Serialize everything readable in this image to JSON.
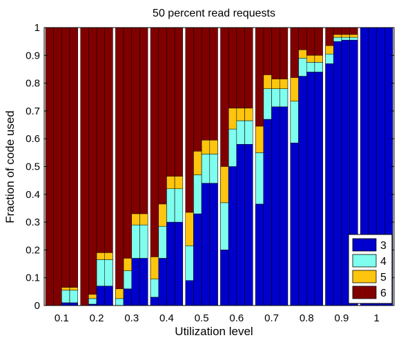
{
  "chart_data": {
    "type": "bar",
    "stacked": true,
    "title": "50 percent read requests",
    "xlabel": "Utilization level",
    "ylabel": "Fraction of code used",
    "ylim": [
      0,
      1
    ],
    "yticks": [
      "0",
      "0.1",
      "0.2",
      "0.3",
      "0.4",
      "0.5",
      "0.6",
      "0.7",
      "0.8",
      "0.9",
      "1"
    ],
    "categories": [
      "0.1",
      "0.2",
      "0.3",
      "0.4",
      "0.5",
      "0.6",
      "0.7",
      "0.8",
      "0.9",
      "1"
    ],
    "bars_per_group": 4,
    "legend": {
      "position": "bottom-right",
      "entries": [
        "3",
        "4",
        "5",
        "6"
      ]
    },
    "colors": {
      "3": "#0000cc",
      "4": "#7ffdee",
      "5": "#fdc50e",
      "6": "#800000"
    },
    "groups": [
      {
        "category": "0.1",
        "bars": [
          {
            "s3": 0.0,
            "s4": 0.0,
            "s5": 0.0
          },
          {
            "s3": 0.0,
            "s4": 0.0,
            "s5": 0.0
          },
          {
            "s3": 0.01,
            "s4": 0.045,
            "s5": 0.01
          },
          {
            "s3": 0.01,
            "s4": 0.045,
            "s5": 0.01
          }
        ]
      },
      {
        "category": "0.2",
        "bars": [
          {
            "s3": 0.0,
            "s4": 0.0,
            "s5": 0.0
          },
          {
            "s3": 0.005,
            "s4": 0.02,
            "s5": 0.015
          },
          {
            "s3": 0.07,
            "s4": 0.095,
            "s5": 0.025
          },
          {
            "s3": 0.07,
            "s4": 0.095,
            "s5": 0.025
          }
        ]
      },
      {
        "category": "0.3",
        "bars": [
          {
            "s3": 0.0,
            "s4": 0.025,
            "s5": 0.035
          },
          {
            "s3": 0.06,
            "s4": 0.065,
            "s5": 0.045
          },
          {
            "s3": 0.17,
            "s4": 0.12,
            "s5": 0.04
          },
          {
            "s3": 0.17,
            "s4": 0.12,
            "s5": 0.04
          }
        ]
      },
      {
        "category": "0.4",
        "bars": [
          {
            "s3": 0.03,
            "s4": 0.065,
            "s5": 0.08
          },
          {
            "s3": 0.17,
            "s4": 0.115,
            "s5": 0.08
          },
          {
            "s3": 0.3,
            "s4": 0.12,
            "s5": 0.045
          },
          {
            "s3": 0.3,
            "s4": 0.12,
            "s5": 0.045
          }
        ]
      },
      {
        "category": "0.5",
        "bars": [
          {
            "s3": 0.09,
            "s4": 0.125,
            "s5": 0.12
          },
          {
            "s3": 0.33,
            "s4": 0.14,
            "s5": 0.085
          },
          {
            "s3": 0.44,
            "s4": 0.105,
            "s5": 0.05
          },
          {
            "s3": 0.44,
            "s4": 0.105,
            "s5": 0.05
          }
        ]
      },
      {
        "category": "0.6",
        "bars": [
          {
            "s3": 0.2,
            "s4": 0.17,
            "s5": 0.13
          },
          {
            "s3": 0.5,
            "s4": 0.135,
            "s5": 0.075
          },
          {
            "s3": 0.58,
            "s4": 0.085,
            "s5": 0.045
          },
          {
            "s3": 0.58,
            "s4": 0.085,
            "s5": 0.045
          }
        ]
      },
      {
        "category": "0.7",
        "bars": [
          {
            "s3": 0.365,
            "s4": 0.185,
            "s5": 0.095
          },
          {
            "s3": 0.67,
            "s4": 0.11,
            "s5": 0.05
          },
          {
            "s3": 0.715,
            "s4": 0.065,
            "s5": 0.035
          },
          {
            "s3": 0.715,
            "s4": 0.065,
            "s5": 0.035
          }
        ]
      },
      {
        "category": "0.8",
        "bars": [
          {
            "s3": 0.585,
            "s4": 0.15,
            "s5": 0.085
          },
          {
            "s3": 0.825,
            "s4": 0.065,
            "s5": 0.03
          },
          {
            "s3": 0.84,
            "s4": 0.035,
            "s5": 0.025
          },
          {
            "s3": 0.84,
            "s4": 0.035,
            "s5": 0.025
          }
        ]
      },
      {
        "category": "0.9",
        "bars": [
          {
            "s3": 0.87,
            "s4": 0.035,
            "s5": 0.03
          },
          {
            "s3": 0.95,
            "s4": 0.015,
            "s5": 0.01
          },
          {
            "s3": 0.955,
            "s4": 0.01,
            "s5": 0.01
          },
          {
            "s3": 0.955,
            "s4": 0.01,
            "s5": 0.01
          }
        ]
      },
      {
        "category": "1",
        "bars": [
          {
            "s3": 1.0,
            "s4": 0.0,
            "s5": 0.0
          },
          {
            "s3": 1.0,
            "s4": 0.0,
            "s5": 0.0
          },
          {
            "s3": 1.0,
            "s4": 0.0,
            "s5": 0.0
          },
          {
            "s3": 1.0,
            "s4": 0.0,
            "s5": 0.0
          }
        ]
      }
    ]
  }
}
